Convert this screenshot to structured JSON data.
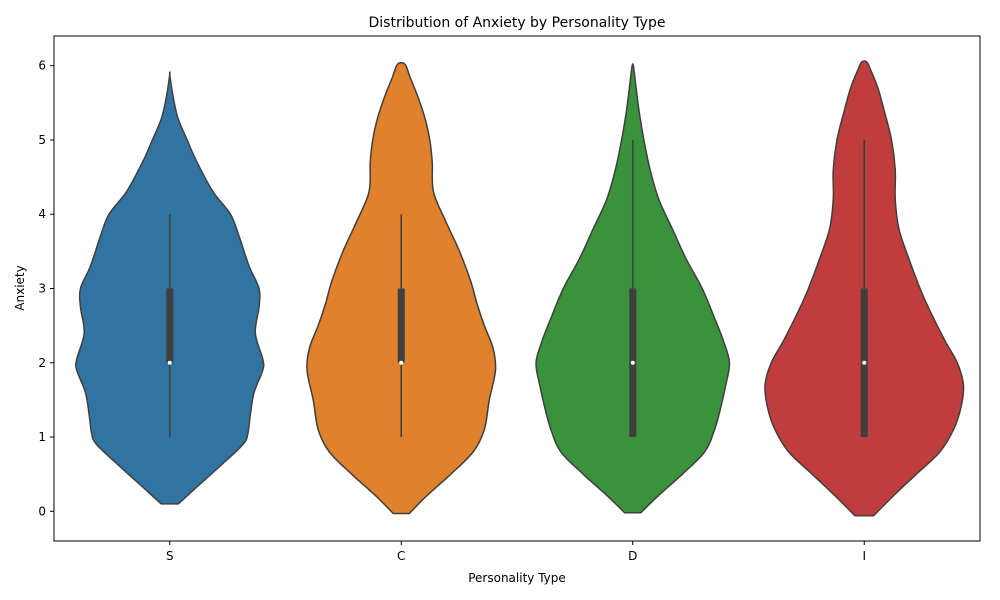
{
  "chart_data": {
    "type": "violin",
    "title": "Distribution of Anxiety by Personality Type",
    "xlabel": "Personality Type",
    "ylabel": "Anxiety",
    "ylim": [
      -0.4,
      6.4
    ],
    "yticks": [
      0,
      1,
      2,
      3,
      4,
      5,
      6
    ],
    "categories": [
      "S",
      "C",
      "D",
      "I"
    ],
    "grid": false,
    "legend": "none",
    "series": [
      {
        "category": "S",
        "color": "#3274a1",
        "median": 2,
        "q1": 2,
        "q3": 3,
        "whisker_low": 1,
        "whisker_high": 4,
        "density": [
          [
            0.1,
            0.14
          ],
          [
            0.3,
            0.4
          ],
          [
            0.6,
            0.8
          ],
          [
            0.9,
            1.18
          ],
          [
            1.05,
            1.26
          ],
          [
            1.3,
            1.3
          ],
          [
            1.6,
            1.36
          ],
          [
            1.9,
            1.5
          ],
          [
            2.05,
            1.5
          ],
          [
            2.4,
            1.38
          ],
          [
            2.75,
            1.44
          ],
          [
            3.0,
            1.44
          ],
          [
            3.3,
            1.28
          ],
          [
            3.7,
            1.12
          ],
          [
            4.0,
            0.98
          ],
          [
            4.3,
            0.7
          ],
          [
            4.7,
            0.44
          ],
          [
            5.0,
            0.28
          ],
          [
            5.3,
            0.13
          ],
          [
            5.6,
            0.05
          ],
          [
            5.88,
            0.0
          ]
        ]
      },
      {
        "category": "C",
        "color": "#e1812c",
        "median": 2,
        "q1": 2,
        "q3": 3,
        "whisker_low": 1,
        "whisker_high": 4,
        "density": [
          [
            -0.03,
            0.13
          ],
          [
            0.2,
            0.4
          ],
          [
            0.5,
            0.8
          ],
          [
            0.8,
            1.16
          ],
          [
            1.1,
            1.34
          ],
          [
            1.5,
            1.42
          ],
          [
            1.9,
            1.52
          ],
          [
            2.2,
            1.48
          ],
          [
            2.5,
            1.34
          ],
          [
            2.8,
            1.22
          ],
          [
            3.1,
            1.12
          ],
          [
            3.5,
            0.94
          ],
          [
            3.9,
            0.72
          ],
          [
            4.3,
            0.52
          ],
          [
            4.7,
            0.5
          ],
          [
            5.0,
            0.46
          ],
          [
            5.3,
            0.38
          ],
          [
            5.6,
            0.26
          ],
          [
            5.85,
            0.14
          ],
          [
            6.02,
            0.06
          ]
        ]
      },
      {
        "category": "D",
        "color": "#3a923a",
        "median": 2,
        "q1": 1,
        "q3": 3,
        "whisker_low": 1,
        "whisker_high": 5,
        "density": [
          [
            -0.02,
            0.13
          ],
          [
            0.2,
            0.4
          ],
          [
            0.5,
            0.8
          ],
          [
            0.8,
            1.16
          ],
          [
            1.1,
            1.32
          ],
          [
            1.4,
            1.42
          ],
          [
            1.7,
            1.5
          ],
          [
            2.0,
            1.56
          ],
          [
            2.3,
            1.46
          ],
          [
            2.6,
            1.32
          ],
          [
            3.0,
            1.12
          ],
          [
            3.4,
            0.86
          ],
          [
            3.8,
            0.64
          ],
          [
            4.2,
            0.42
          ],
          [
            4.6,
            0.28
          ],
          [
            5.0,
            0.18
          ],
          [
            5.4,
            0.1
          ],
          [
            5.8,
            0.04
          ],
          [
            6.0,
            0.01
          ]
        ]
      },
      {
        "category": "I",
        "color": "#c03d3e",
        "median": 2,
        "q1": 1,
        "q3": 3,
        "whisker_low": 1,
        "whisker_high": 5,
        "density": [
          [
            -0.06,
            0.15
          ],
          [
            0.2,
            0.46
          ],
          [
            0.5,
            0.84
          ],
          [
            0.8,
            1.22
          ],
          [
            1.1,
            1.44
          ],
          [
            1.4,
            1.56
          ],
          [
            1.7,
            1.6
          ],
          [
            2.0,
            1.5
          ],
          [
            2.3,
            1.3
          ],
          [
            2.7,
            1.06
          ],
          [
            3.0,
            0.9
          ],
          [
            3.4,
            0.72
          ],
          [
            3.8,
            0.56
          ],
          [
            4.2,
            0.5
          ],
          [
            4.6,
            0.5
          ],
          [
            5.0,
            0.44
          ],
          [
            5.4,
            0.32
          ],
          [
            5.7,
            0.22
          ],
          [
            5.95,
            0.1
          ],
          [
            6.05,
            0.04
          ]
        ]
      }
    ]
  }
}
